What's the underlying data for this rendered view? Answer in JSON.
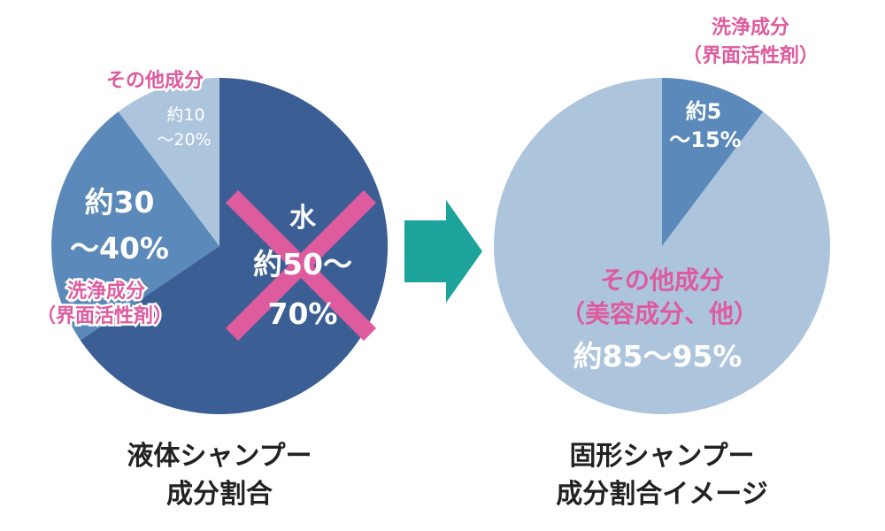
{
  "colors": {
    "dark": "#3b5f95",
    "mid": "#5b89ba",
    "light": "#adc4dd",
    "pink": "#de5b9e",
    "teal": "#1ba39c",
    "text_dark": "#222222",
    "white": "#ffffff"
  },
  "chart_data": [
    {
      "type": "pie",
      "title": "液体シャンプー\n成分割合",
      "title_lines": [
        "液体シャンプー",
        "成分割合"
      ],
      "slices": [
        {
          "name": "水",
          "range": [
            50,
            70
          ],
          "value_label": "約50〜70%",
          "label_lines": [
            "水",
            "約50〜",
            "70%"
          ],
          "crossed_out": true,
          "color": "#3b5f95"
        },
        {
          "name": "洗浄成分（界面活性剤）",
          "range": [
            30,
            40
          ],
          "value_label": "約30〜40%",
          "label_lines": [
            "約30",
            "〜40%"
          ],
          "name_lines": [
            "洗浄成分",
            "（界面活性剤）"
          ],
          "color": "#5b89ba"
        },
        {
          "name": "その他成分",
          "range": [
            10,
            20
          ],
          "value_label": "約10〜20%",
          "label_lines": [
            "約10",
            "〜20%"
          ],
          "name_lines": [
            "その他成分"
          ],
          "color": "#adc4dd"
        }
      ]
    },
    {
      "type": "pie",
      "title": "固形シャンプー\n成分割合イメージ",
      "title_lines": [
        "固形シャンプー",
        "成分割合イメージ"
      ],
      "slices": [
        {
          "name": "洗浄成分（界面活性剤）",
          "range": [
            5,
            15
          ],
          "value_label": "約5〜15%",
          "label_lines": [
            "約5",
            "〜15%"
          ],
          "name_lines": [
            "洗浄成分",
            "（界面活性剤）"
          ],
          "color": "#5b89ba"
        },
        {
          "name": "その他成分（美容成分、他）",
          "range": [
            85,
            95
          ],
          "value_label": "約85〜95%",
          "label_lines": [
            "その他成分",
            "（美容成分、他）",
            "約85〜95%"
          ],
          "color": "#adc4dd"
        }
      ]
    }
  ]
}
